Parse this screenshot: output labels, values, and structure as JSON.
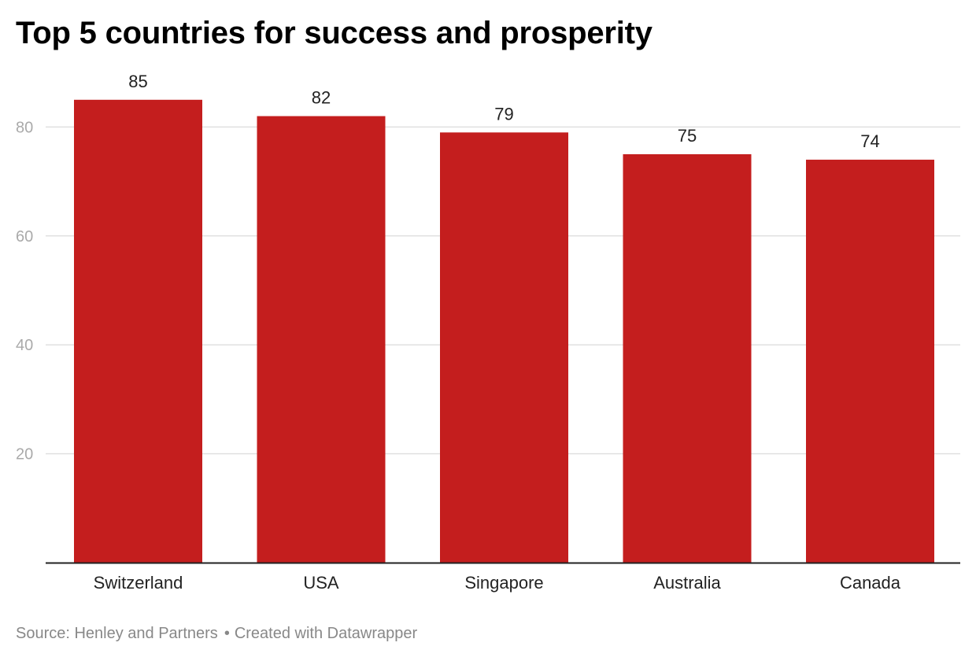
{
  "title": "Top 5 countries for success and prosperity",
  "footer": {
    "source": "Source: Henley and Partners",
    "separator": "•",
    "credit": "Created with Datawrapper"
  },
  "colors": {
    "bar": "#c41e1e",
    "grid": "#e0e0e0",
    "axis": "#222222",
    "tick_label": "#aaaaaa",
    "category_label": "#222222",
    "value_label": "#222222"
  },
  "chart_data": {
    "type": "bar",
    "categories": [
      "Switzerland",
      "USA",
      "Singapore",
      "Australia",
      "Canada"
    ],
    "values": [
      85,
      82,
      79,
      75,
      74
    ],
    "value_labels": [
      "85",
      "82",
      "79",
      "75",
      "74"
    ],
    "title": "Top 5 countries for success and prosperity",
    "xlabel": "",
    "ylabel": "",
    "ylim": [
      0,
      85
    ],
    "yticks": [
      20,
      40,
      60,
      80
    ],
    "grid": true,
    "legend": "none"
  }
}
